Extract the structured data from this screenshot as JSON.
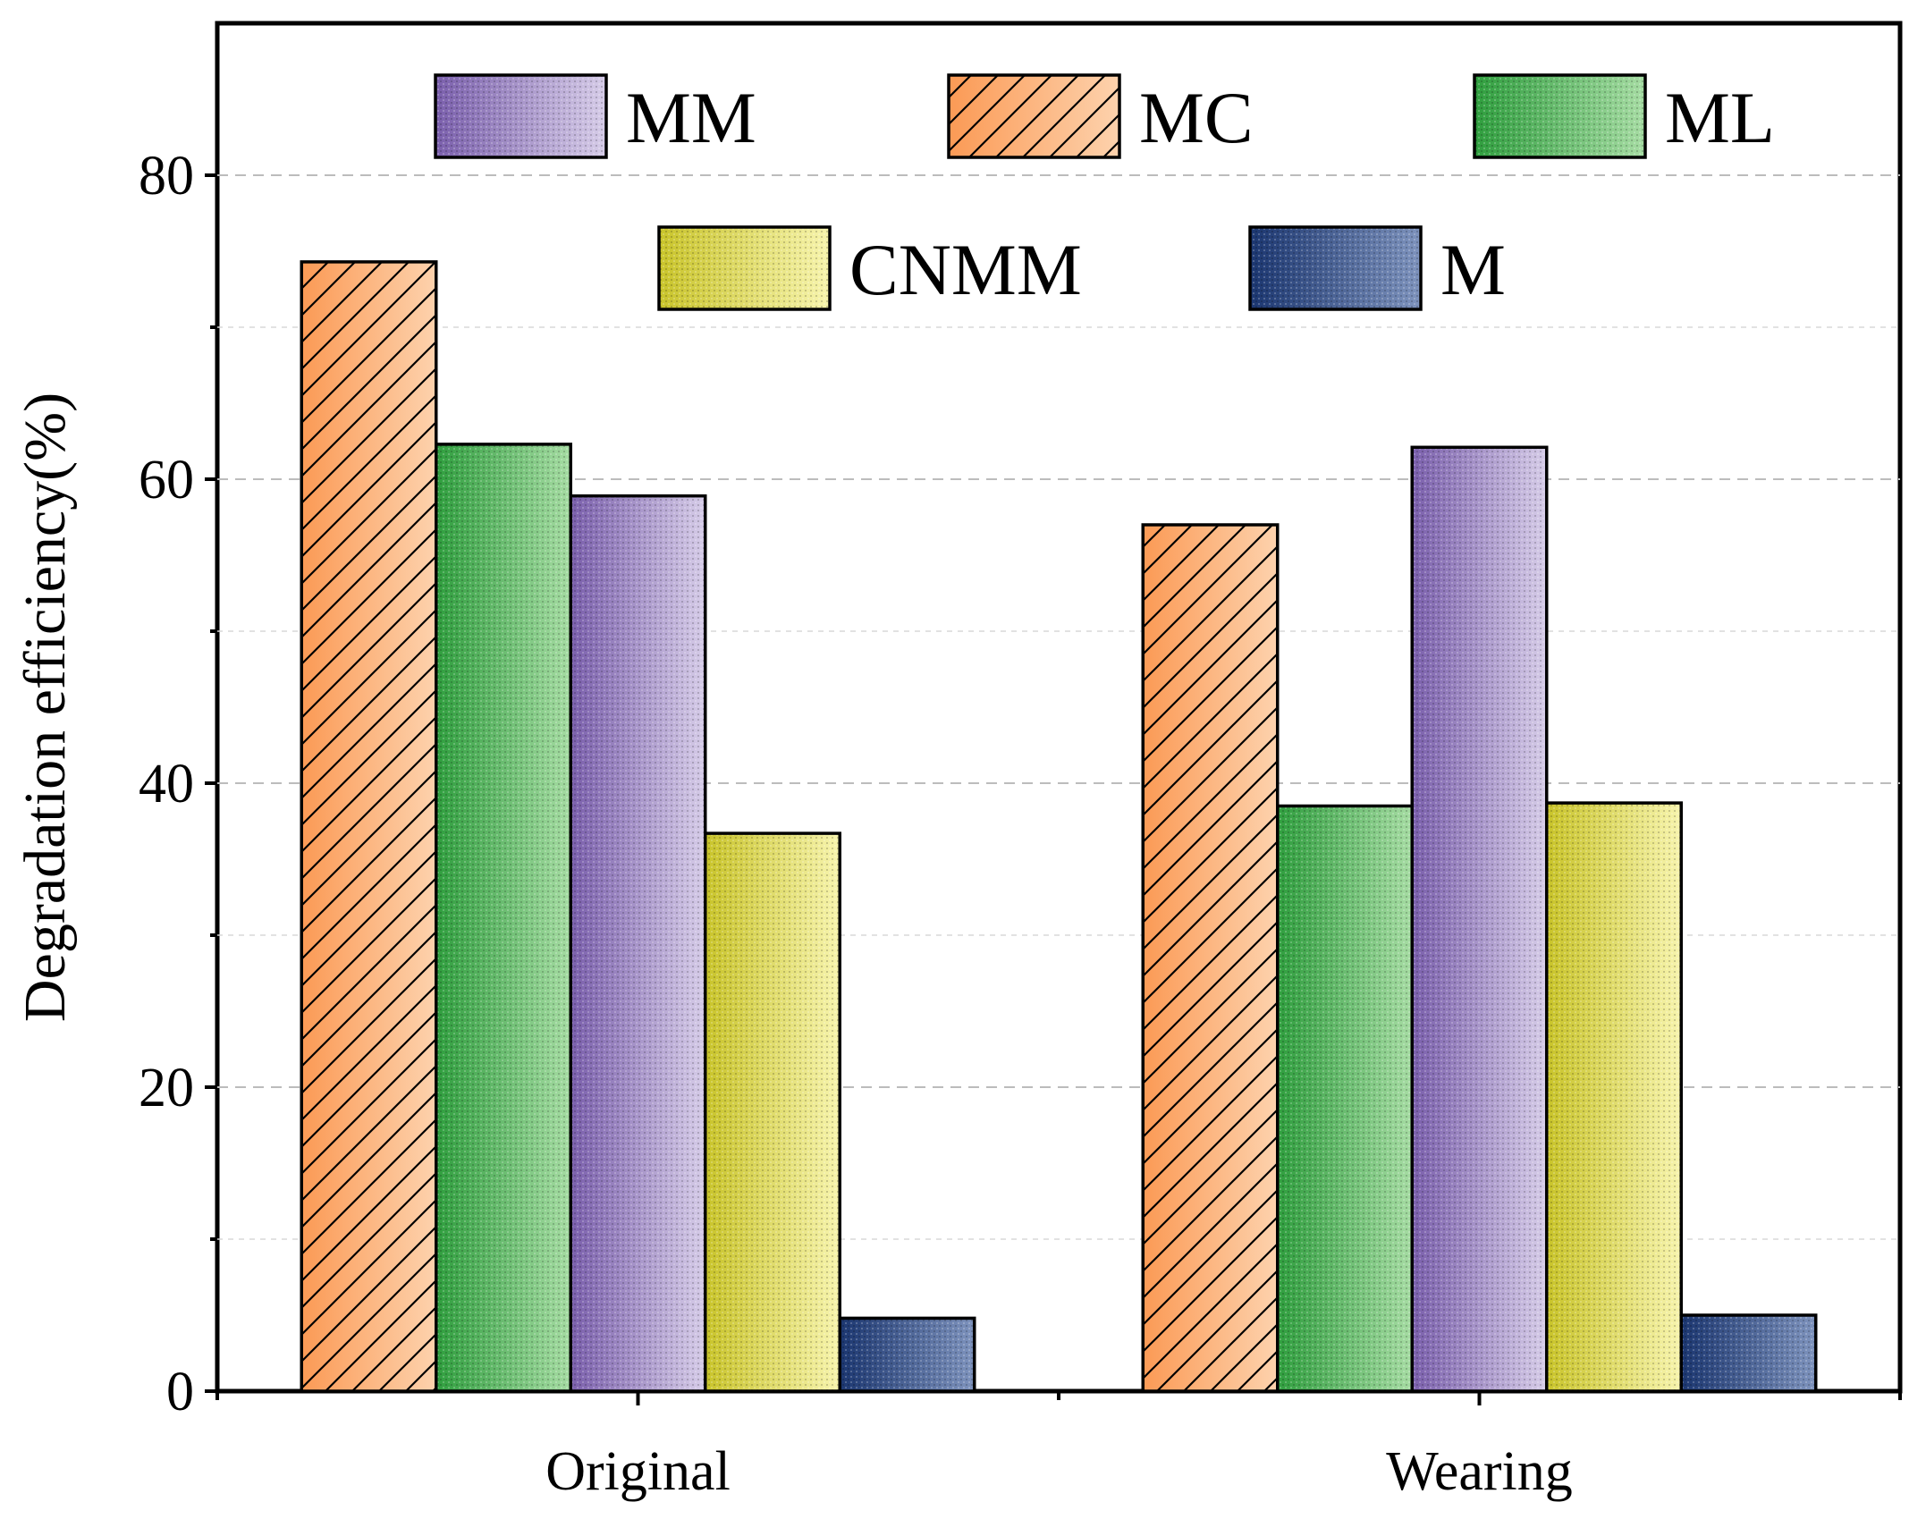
{
  "chart_data": {
    "type": "bar",
    "title": "",
    "xlabel": "",
    "ylabel": "Degradation efficiency(%)",
    "ylim": [
      0,
      90
    ],
    "yticks": [
      0,
      20,
      40,
      60,
      80
    ],
    "grid": true,
    "legend_position": "top",
    "categories": [
      "Original",
      "Wearing"
    ],
    "series": [
      {
        "name": "MC",
        "values": [
          74.3,
          57.0
        ],
        "color": "#f9a66a",
        "pattern": "hatch"
      },
      {
        "name": "ML",
        "values": [
          62.3,
          38.5
        ],
        "color": "#4db357",
        "pattern": "dots"
      },
      {
        "name": "MM",
        "values": [
          58.9,
          62.1
        ],
        "color": "#9b86c3",
        "pattern": "dots"
      },
      {
        "name": "CNMM",
        "values": [
          36.7,
          38.7
        ],
        "color": "#e0dc52",
        "pattern": "dots"
      },
      {
        "name": "M",
        "values": [
          4.8,
          5.0
        ],
        "color": "#2a4478",
        "pattern": "dots"
      }
    ],
    "legend_order": [
      "MM",
      "MC",
      "ML",
      "CNMM",
      "M"
    ]
  }
}
